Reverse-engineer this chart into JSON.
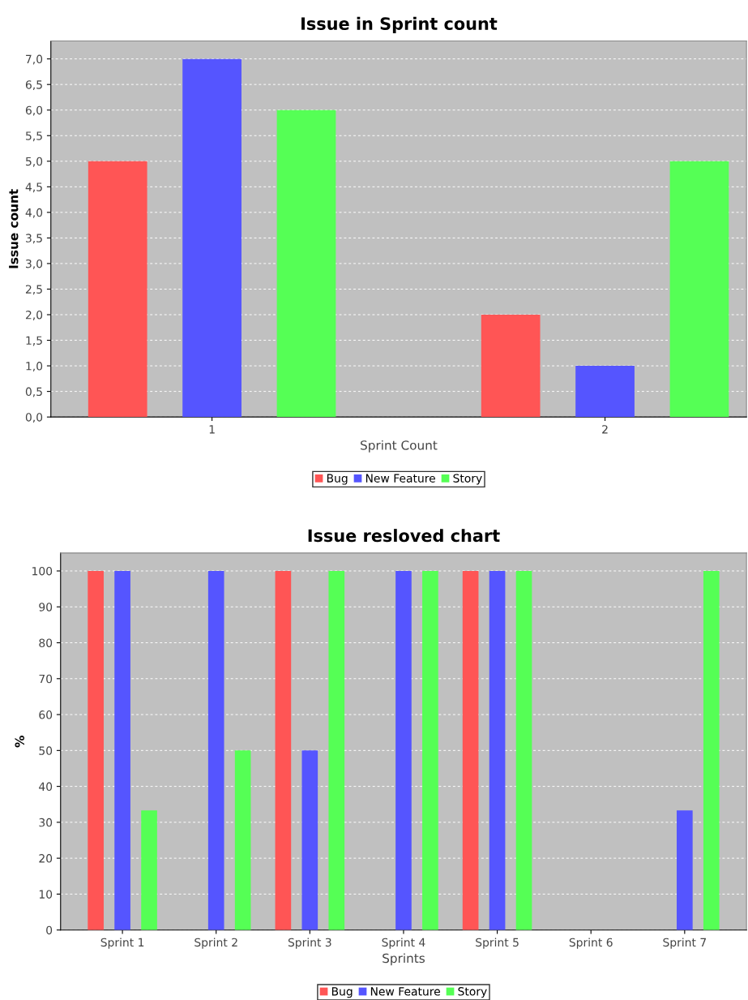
{
  "chart_data": [
    {
      "type": "bar",
      "title": "Issue in Sprint count",
      "xlabel": "Sprint Count",
      "ylabel": "Issue count",
      "categories": [
        "1",
        "2"
      ],
      "series": [
        {
          "name": "Bug",
          "color": "#ff5555",
          "values": [
            5,
            2
          ]
        },
        {
          "name": "New Feature",
          "color": "#5555ff",
          "values": [
            7,
            1
          ]
        },
        {
          "name": "Story",
          "color": "#55ff55",
          "values": [
            6,
            5
          ]
        }
      ],
      "ylim": [
        0,
        7.35
      ],
      "yticks": [
        {
          "value": 0,
          "label": "0,0"
        },
        {
          "value": 0.5,
          "label": "0,5"
        },
        {
          "value": 1,
          "label": "1,0"
        },
        {
          "value": 1.5,
          "label": "1,5"
        },
        {
          "value": 2,
          "label": "2,0"
        },
        {
          "value": 2.5,
          "label": "2,5"
        },
        {
          "value": 3,
          "label": "3,0"
        },
        {
          "value": 3.5,
          "label": "3,5"
        },
        {
          "value": 4,
          "label": "4,0"
        },
        {
          "value": 4.5,
          "label": "4,5"
        },
        {
          "value": 5,
          "label": "5,0"
        },
        {
          "value": 5.5,
          "label": "5,5"
        },
        {
          "value": 6,
          "label": "6,0"
        },
        {
          "value": 6.5,
          "label": "6,5"
        },
        {
          "value": 7,
          "label": "7,0"
        }
      ],
      "grid": "y",
      "legend": "bottom"
    },
    {
      "type": "bar",
      "title": "Issue resloved chart",
      "xlabel": "Sprints",
      "ylabel": "%",
      "categories": [
        "Sprint 1",
        "Sprint 2",
        "Sprint 3",
        "Sprint 4",
        "Sprint 5",
        "Sprint 6",
        "Sprint 7"
      ],
      "series": [
        {
          "name": "Bug",
          "color": "#ff5555",
          "values": [
            100,
            0,
            100,
            0,
            100,
            0,
            0
          ]
        },
        {
          "name": "New Feature",
          "color": "#5555ff",
          "values": [
            100,
            100,
            50,
            100,
            100,
            0,
            33.3
          ]
        },
        {
          "name": "Story",
          "color": "#55ff55",
          "values": [
            33.3,
            50,
            100,
            100,
            100,
            0,
            100
          ]
        }
      ],
      "ylim": [
        0,
        105
      ],
      "yticks": [
        0,
        10,
        20,
        30,
        40,
        50,
        60,
        70,
        80,
        90,
        100
      ],
      "grid": "y",
      "legend": "bottom"
    }
  ]
}
